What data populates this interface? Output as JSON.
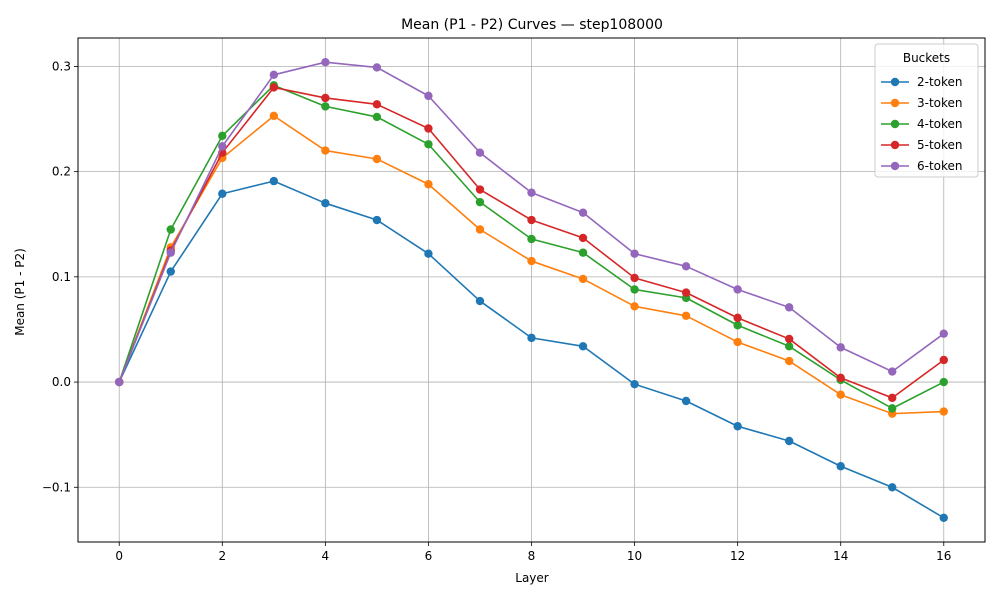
{
  "chart_data": {
    "type": "line",
    "title": "Mean (P1 - P2) Curves — step108000",
    "xlabel": "Layer",
    "ylabel": "Mean (P1 - P2)",
    "xlim": [
      -0.8,
      16.8
    ],
    "ylim": [
      -0.152,
      0.327
    ],
    "xticks": [
      0,
      2,
      4,
      6,
      8,
      10,
      12,
      14,
      16
    ],
    "xtick_labels": [
      "0",
      "2",
      "4",
      "6",
      "8",
      "10",
      "12",
      "14",
      "16"
    ],
    "yticks": [
      -0.1,
      0.0,
      0.1,
      0.2,
      0.3
    ],
    "ytick_labels": [
      "−0.1",
      "0.0",
      "0.1",
      "0.2",
      "0.3"
    ],
    "grid": true,
    "legend": {
      "title": "Buckets",
      "position": "top-right"
    },
    "x": [
      0,
      1,
      2,
      3,
      4,
      5,
      6,
      7,
      8,
      9,
      10,
      11,
      12,
      13,
      14,
      15,
      16
    ],
    "series": [
      {
        "name": "2-token",
        "color": "#1f77b4",
        "values": [
          0.0,
          0.105,
          0.179,
          0.191,
          0.17,
          0.154,
          0.122,
          0.077,
          0.042,
          0.034,
          -0.002,
          -0.018,
          -0.042,
          -0.056,
          -0.08,
          -0.1,
          -0.129
        ]
      },
      {
        "name": "3-token",
        "color": "#ff7f0e",
        "values": [
          0.0,
          0.128,
          0.213,
          0.253,
          0.22,
          0.212,
          0.188,
          0.145,
          0.115,
          0.098,
          0.072,
          0.063,
          0.038,
          0.02,
          -0.012,
          -0.03,
          -0.028
        ]
      },
      {
        "name": "4-token",
        "color": "#2ca02c",
        "values": [
          0.0,
          0.145,
          0.234,
          0.282,
          0.262,
          0.252,
          0.226,
          0.171,
          0.136,
          0.123,
          0.088,
          0.08,
          0.054,
          0.034,
          0.002,
          -0.025,
          0.0
        ]
      },
      {
        "name": "5-token",
        "color": "#d62728",
        "values": [
          0.0,
          0.125,
          0.218,
          0.28,
          0.27,
          0.264,
          0.241,
          0.183,
          0.154,
          0.137,
          0.099,
          0.085,
          0.061,
          0.041,
          0.004,
          -0.015,
          0.021
        ]
      },
      {
        "name": "6-token",
        "color": "#9467bd",
        "values": [
          0.0,
          0.123,
          0.224,
          0.292,
          0.304,
          0.299,
          0.272,
          0.218,
          0.18,
          0.161,
          0.122,
          0.11,
          0.088,
          0.071,
          0.033,
          0.01,
          0.046
        ]
      }
    ]
  }
}
